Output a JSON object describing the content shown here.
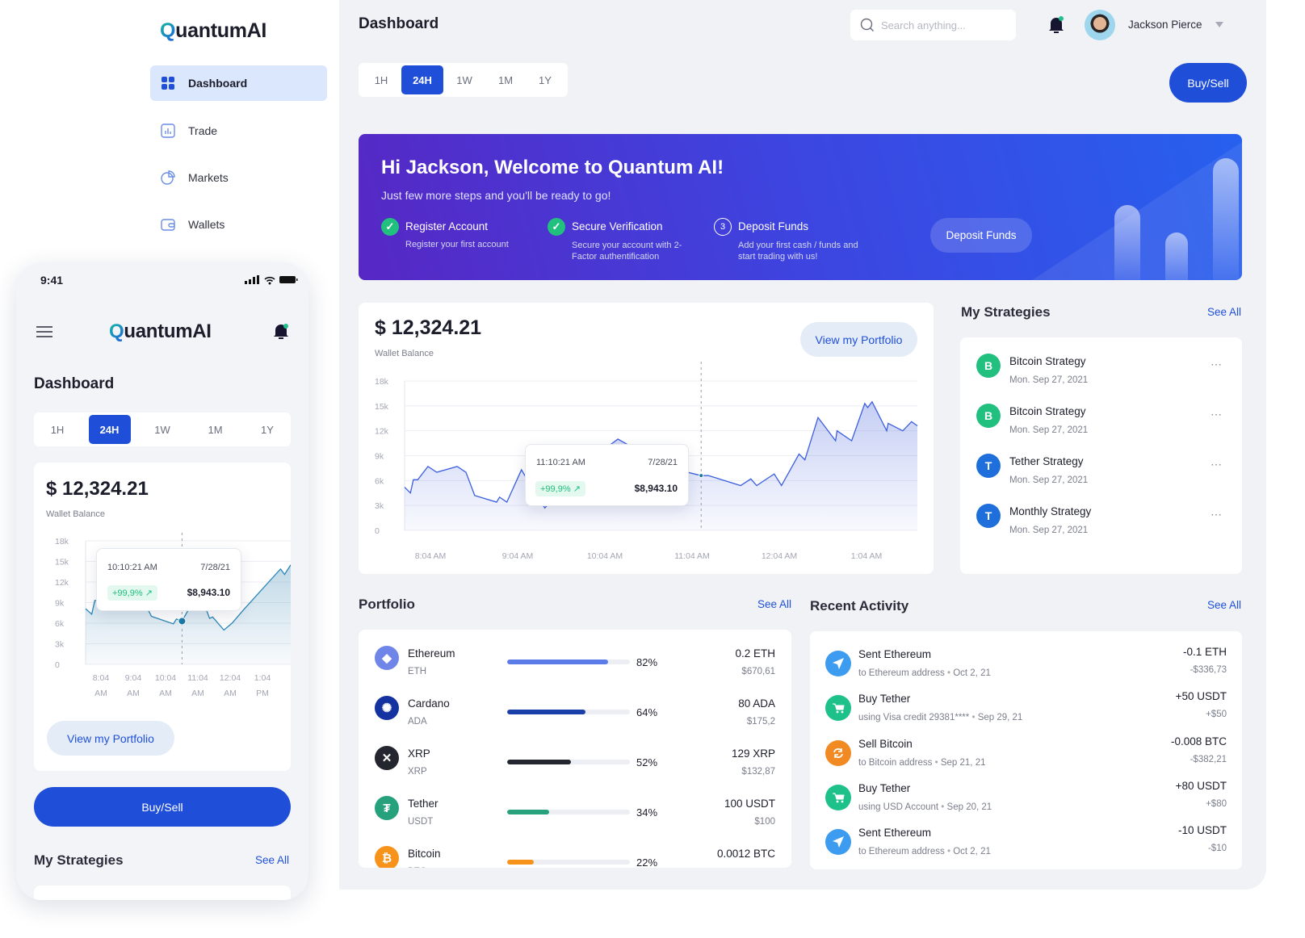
{
  "app": {
    "logo": "QuantumAI"
  },
  "sidebar": {
    "items": [
      {
        "label": "Dashboard",
        "icon": "grid-icon",
        "active": true
      },
      {
        "label": "Trade",
        "icon": "chart-icon"
      },
      {
        "label": "Markets",
        "icon": "pie-icon"
      },
      {
        "label": "Wallets",
        "icon": "wallet-icon"
      }
    ]
  },
  "header": {
    "title": "Dashboard",
    "search_placeholder": "Search anything...",
    "user_name": "Jackson Pierce"
  },
  "timeframes": [
    "1H",
    "24H",
    "1W",
    "1M",
    "1Y"
  ],
  "active_timeframe": "24H",
  "buy_sell": "Buy/Sell",
  "banner": {
    "title": "Hi Jackson, Welcome to Quantum AI!",
    "subtitle": "Just few more steps and you'll be ready to go!",
    "steps": [
      {
        "title": "Register Account",
        "desc": "Register your first account",
        "done": true
      },
      {
        "title": "Secure Verification",
        "desc": "Secure your account with 2-Factor authentification",
        "done": true
      },
      {
        "title": "Deposit Funds",
        "desc": "Add your first cash / funds and start trading with us!",
        "done": false,
        "number": "3"
      }
    ],
    "button": "Deposit Funds"
  },
  "wallet": {
    "balance": "$ 12,324.21",
    "label": "Wallet Balance",
    "portfolio_button": "View my Portfolio",
    "tooltip": {
      "time": "11:10:21 AM",
      "date": "7/28/21",
      "change": "+99,9%",
      "value": "$8,943.10"
    },
    "mobile_tooltip": {
      "time": "10:10:21 AM",
      "date": "7/28/21",
      "change": "+99,9%",
      "value": "$8,943.10"
    }
  },
  "chart_data": [
    {
      "type": "area",
      "ylim": [
        0,
        18
      ],
      "yticks": [
        "0",
        "3k",
        "6k",
        "9k",
        "12k",
        "15k",
        "18k"
      ],
      "xticks": [
        "8:04 AM",
        "9:04 AM",
        "10:04 AM",
        "11:04 AM",
        "12:04 AM",
        "1:04 AM"
      ],
      "grid": true,
      "line_color": "#3b5ee0",
      "points": [
        [
          "7:46",
          5.2
        ],
        [
          "7:50",
          4.5
        ],
        [
          "7:52",
          6.1
        ],
        [
          "7:55",
          6.1
        ],
        [
          "8:02",
          7.7
        ],
        [
          "8:08",
          7.0
        ],
        [
          "8:22",
          7.7
        ],
        [
          "8:28",
          7.0
        ],
        [
          "8:34",
          4.2
        ],
        [
          "8:49",
          3.4
        ],
        [
          "8:51",
          4.0
        ],
        [
          "8:56",
          3.4
        ],
        [
          "9:06",
          7.3
        ],
        [
          "9:11",
          5.8
        ],
        [
          "9:22",
          2.7
        ],
        [
          "9:36",
          5.5
        ],
        [
          "9:53",
          8.5
        ],
        [
          "10:12",
          11.0
        ],
        [
          "10:18",
          10.4
        ],
        [
          "10:31",
          9.0
        ],
        [
          "10:48",
          7.5
        ],
        [
          "11:09",
          6.6
        ],
        [
          "11:14",
          6.6
        ],
        [
          "11:36",
          5.4
        ],
        [
          "11:43",
          6.2
        ],
        [
          "11:47",
          5.4
        ],
        [
          "11:59",
          6.8
        ],
        [
          "12:04",
          5.4
        ],
        [
          "12:16",
          9.2
        ],
        [
          "12:20",
          8.5
        ],
        [
          "12:29",
          13.6
        ],
        [
          "12:41",
          10.8
        ],
        [
          "12:42",
          12.0
        ],
        [
          "12:52",
          10.8
        ],
        [
          "13:01",
          15.3
        ],
        [
          "13:03",
          14.8
        ],
        [
          "13:06",
          15.5
        ],
        [
          "13:16",
          12.0
        ],
        [
          "13:17",
          12.9
        ],
        [
          "13:27",
          12.0
        ],
        [
          "13:33",
          13.1
        ],
        [
          "13:37",
          12.6
        ]
      ],
      "highlight": [
        "11:09",
        6.6
      ]
    },
    {
      "type": "area",
      "ylim": [
        0,
        18
      ],
      "yticks": [
        "0",
        "3k",
        "6k",
        "9k",
        "12k",
        "15k",
        "18k"
      ],
      "xticks": [
        [
          "8:04",
          "AM"
        ],
        [
          "9:04",
          "AM"
        ],
        [
          "10:04",
          "AM"
        ],
        [
          "11:04",
          "AM"
        ],
        [
          "12:04",
          "AM"
        ],
        [
          "1:04",
          "PM"
        ]
      ],
      "grid": true,
      "line_color": "#2a86b8",
      "points": [
        [
          "7:32",
          8.1
        ],
        [
          "7:44",
          7.3
        ],
        [
          "7:50",
          9.3
        ],
        [
          "7:57",
          9.3
        ],
        [
          "8:21",
          11.3
        ],
        [
          "8:51",
          10.5
        ],
        [
          "9:16",
          12.0
        ],
        [
          "9:31",
          8.5
        ],
        [
          "9:41",
          7.0
        ],
        [
          "10:24",
          5.9
        ],
        [
          "10:30",
          6.6
        ],
        [
          "10:41",
          6.3
        ],
        [
          "10:56",
          8.3
        ],
        [
          "11:11",
          11.0
        ],
        [
          "11:21",
          9.5
        ],
        [
          "11:29",
          7.9
        ],
        [
          "11:35",
          6.7
        ],
        [
          "11:41",
          6.9
        ],
        [
          "12:03",
          5.0
        ],
        [
          "12:19",
          6.0
        ],
        [
          "12:41",
          7.9
        ],
        [
          "13:54",
          13.9
        ],
        [
          "14:02",
          13.1
        ],
        [
          "14:14",
          14.5
        ]
      ],
      "highlight": [
        "10:41",
        6.3
      ]
    }
  ],
  "strategies": {
    "title": "My Strategies",
    "see_all": "See All",
    "items": [
      {
        "letter": "B",
        "name": "Bitcoin Strategy",
        "date": "Mon. Sep 27, 2021",
        "color": "#22c07f"
      },
      {
        "letter": "B",
        "name": "Bitcoin Strategy",
        "date": "Mon. Sep 27, 2021",
        "color": "#22c07f"
      },
      {
        "letter": "T",
        "name": "Tether Strategy",
        "date": "Mon. Sep 27, 2021",
        "color": "#1e6fdc"
      },
      {
        "letter": "T",
        "name": "Monthly Strategy",
        "date": "Mon. Sep 27, 2021",
        "color": "#1e6fdc"
      }
    ]
  },
  "portfolio": {
    "title": "Portfolio",
    "see_all": "See All",
    "items": [
      {
        "name": "Ethereum",
        "ticker": "ETH",
        "percent": 82,
        "pct_label": "82%",
        "amount": "0.2 ETH",
        "value": "$670,61",
        "color": "#5b7be8",
        "icon_bg": "#6f86e8",
        "glyph": "◆"
      },
      {
        "name": "Cardano",
        "ticker": "ADA",
        "percent": 64,
        "pct_label": "64%",
        "amount": "80 ADA",
        "value": "$175,2",
        "color": "#1a3fa8",
        "icon_bg": "#1533a0",
        "glyph": "✺"
      },
      {
        "name": "XRP",
        "ticker": "XRP",
        "percent": 52,
        "pct_label": "52%",
        "amount": "129 XRP",
        "value": "$132,87",
        "color": "#23262f",
        "icon_bg": "#23262f",
        "glyph": "✕"
      },
      {
        "name": "Tether",
        "ticker": "USDT",
        "percent": 34,
        "pct_label": "34%",
        "amount": "100 USDT",
        "value": "$100",
        "color": "#26a17b",
        "icon_bg": "#26a17b",
        "glyph": "₮"
      },
      {
        "name": "Bitcoin",
        "ticker": "BTC",
        "percent": 22,
        "pct_label": "22%",
        "amount": "0.0012 BTC",
        "value": "",
        "color": "#f7931a",
        "icon_bg": "#f7931a",
        "glyph": "₿"
      }
    ]
  },
  "activity": {
    "title": "Recent Activity",
    "see_all": "See All",
    "items": [
      {
        "title": "Sent Ethereum",
        "desc": "to Ethereum address",
        "date": "Oct 2, 21",
        "amount": "-0.1 ETH",
        "value": "-$336,73",
        "icon": "send-icon",
        "color": "#3d9bf0"
      },
      {
        "title": "Buy Tether",
        "desc": "using Visa credit 29381****",
        "date": "Sep 29, 21",
        "amount": "+50 USDT",
        "value": "+$50",
        "icon": "cart-icon",
        "color": "#1fc18a"
      },
      {
        "title": "Sell Bitcoin",
        "desc": "to Bitcoin address",
        "date": "Sep 21, 21",
        "amount": "-0.008 BTC",
        "value": "-$382,21",
        "icon": "exchange-icon",
        "color": "#f28a24"
      },
      {
        "title": "Buy Tether",
        "desc": "using USD Account",
        "date": "Sep 20, 21",
        "amount": "+80 USDT",
        "value": "+$80",
        "icon": "cart-icon",
        "color": "#1fc18a"
      },
      {
        "title": "Sent Ethereum",
        "desc": "to Ethereum address",
        "date": "Oct 2, 21",
        "amount": "-10 USDT",
        "value": "-$10",
        "icon": "send-icon",
        "color": "#3d9bf0"
      }
    ]
  },
  "mobile": {
    "time": "9:41",
    "title": "Dashboard",
    "strategies_title": "My Strategies",
    "see_all": "See All"
  }
}
